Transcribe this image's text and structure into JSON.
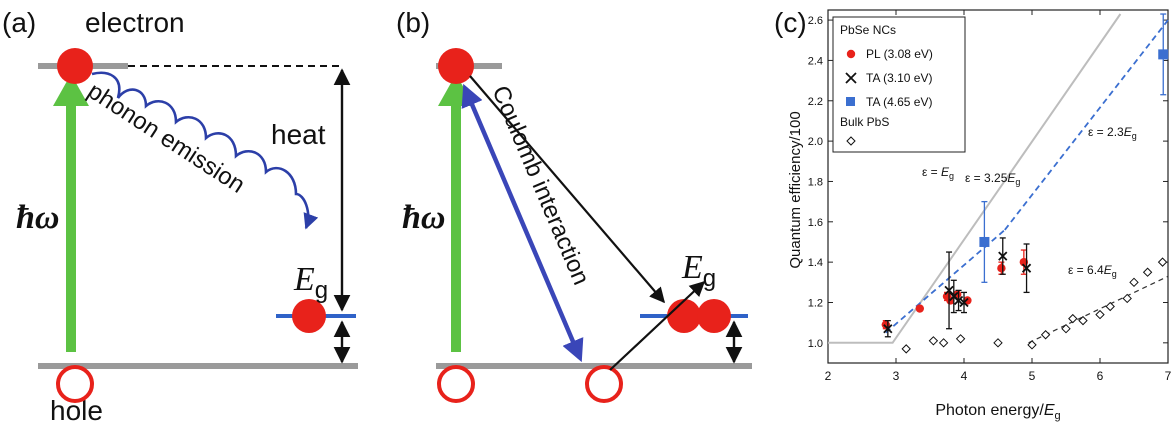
{
  "panels": {
    "a": {
      "tag": "(a)",
      "electron": "electron",
      "hole": "hole",
      "photon": "ħω",
      "phonon": "phonon emission",
      "heat": "heat",
      "gap_symbol": "E",
      "gap_sub": "g"
    },
    "b": {
      "tag": "(b)",
      "photon": "ħω",
      "coulomb": "Coulomb interaction",
      "gap_symbol": "E",
      "gap_sub": "g"
    },
    "c": {
      "tag": "(c)"
    }
  },
  "colors": {
    "electron": "#e8221b",
    "photon_arrow": "#5cc243",
    "phonon": "#2c3fa8",
    "coulomb": "#3a46b8",
    "level_gray": "#9a9a9a",
    "level_blue": "#2f62c8",
    "ta465": "#3b6fd0",
    "bulk_line": "#bdbdbd"
  },
  "chart_data": {
    "type": "scatter",
    "xlabel_pre": "Photon energy/",
    "xlabel_sym": "E",
    "xlabel_sub": "g",
    "ylabel": "Quantum efficiency/100",
    "xlim": [
      2,
      7
    ],
    "ylim": [
      0.9,
      2.65
    ],
    "xticks": [
      2,
      3,
      4,
      5,
      6,
      7
    ],
    "yticks": [
      1.0,
      1.2,
      1.4,
      1.6,
      1.8,
      2.0,
      2.2,
      2.4,
      2.6
    ],
    "legend": {
      "title": "PbSe NCs",
      "pl": "PL (3.08 eV)",
      "ta310": "TA (3.10 eV)",
      "ta465": "TA (4.65 eV)",
      "bulk": "Bulk PbS"
    },
    "series": [
      {
        "name": "PL (3.08 eV)",
        "marker": "circle",
        "points": [
          {
            "x": 2.85,
            "y": 1.09,
            "err": 0.02
          },
          {
            "x": 3.35,
            "y": 1.17,
            "err": 0
          },
          {
            "x": 3.75,
            "y": 1.23,
            "err": 0.02
          },
          {
            "x": 3.8,
            "y": 1.21,
            "err": 0
          },
          {
            "x": 3.9,
            "y": 1.24,
            "err": 0
          },
          {
            "x": 4.05,
            "y": 1.21,
            "err": 0
          },
          {
            "x": 4.55,
            "y": 1.37,
            "err": 0.03
          },
          {
            "x": 4.88,
            "y": 1.4,
            "err": 0.06
          }
        ]
      },
      {
        "name": "TA (3.10 eV)",
        "marker": "x",
        "points": [
          {
            "x": 2.88,
            "y": 1.07,
            "err": 0.04
          },
          {
            "x": 3.78,
            "y": 1.26,
            "err": 0.19
          },
          {
            "x": 3.85,
            "y": 1.23,
            "err": 0.08
          },
          {
            "x": 3.92,
            "y": 1.21,
            "err": 0.05
          },
          {
            "x": 4.0,
            "y": 1.2,
            "err": 0.05
          },
          {
            "x": 4.57,
            "y": 1.43,
            "err": 0.09
          },
          {
            "x": 4.92,
            "y": 1.37,
            "err": 0.12
          }
        ]
      },
      {
        "name": "TA (4.65 eV)",
        "marker": "square",
        "points": [
          {
            "x": 4.3,
            "y": 1.5,
            "err": 0.2
          },
          {
            "x": 6.93,
            "y": 2.43,
            "err": 0.2
          }
        ]
      },
      {
        "name": "Bulk PbS",
        "marker": "diamond",
        "points": [
          {
            "x": 3.15,
            "y": 0.97
          },
          {
            "x": 3.55,
            "y": 1.01
          },
          {
            "x": 3.7,
            "y": 1.0
          },
          {
            "x": 3.95,
            "y": 1.02
          },
          {
            "x": 4.5,
            "y": 1.0
          },
          {
            "x": 5.0,
            "y": 0.99
          },
          {
            "x": 5.2,
            "y": 1.04
          },
          {
            "x": 5.5,
            "y": 1.07
          },
          {
            "x": 5.6,
            "y": 1.12
          },
          {
            "x": 5.75,
            "y": 1.11
          },
          {
            "x": 6.0,
            "y": 1.14
          },
          {
            "x": 6.15,
            "y": 1.18
          },
          {
            "x": 6.4,
            "y": 1.22
          },
          {
            "x": 6.5,
            "y": 1.3
          },
          {
            "x": 6.7,
            "y": 1.35
          },
          {
            "x": 6.92,
            "y": 1.4
          }
        ]
      }
    ],
    "lines": [
      {
        "name": "eg",
        "style": "solid",
        "points": [
          [
            2,
            1.0
          ],
          [
            2.95,
            1.0
          ],
          [
            6.3,
            2.63
          ]
        ]
      },
      {
        "name": "fit325",
        "style": "dashed",
        "points": [
          [
            2.85,
            1.05
          ],
          [
            4.6,
            1.56
          ]
        ]
      },
      {
        "name": "fit23",
        "style": "dashed",
        "points": [
          [
            4.6,
            1.56
          ],
          [
            7.0,
            2.6
          ]
        ]
      },
      {
        "name": "fit64",
        "style": "dashed",
        "points": [
          [
            4.95,
            1.0
          ],
          [
            7.0,
            1.33
          ]
        ]
      }
    ],
    "annotations": {
      "eq_eg_pre": "ε = ",
      "eq_eg_sym": "E",
      "eq_eg_sub": "g",
      "eq_325_pre": "ε = 3.25",
      "eq_325_sym": "E",
      "eq_325_sub": "g",
      "eq_23_pre": "ε = 2.3",
      "eq_23_sym": "E",
      "eq_23_sub": "g",
      "eq_64_pre": "ε = 6.4",
      "eq_64_sym": "E",
      "eq_64_sub": "g"
    }
  }
}
